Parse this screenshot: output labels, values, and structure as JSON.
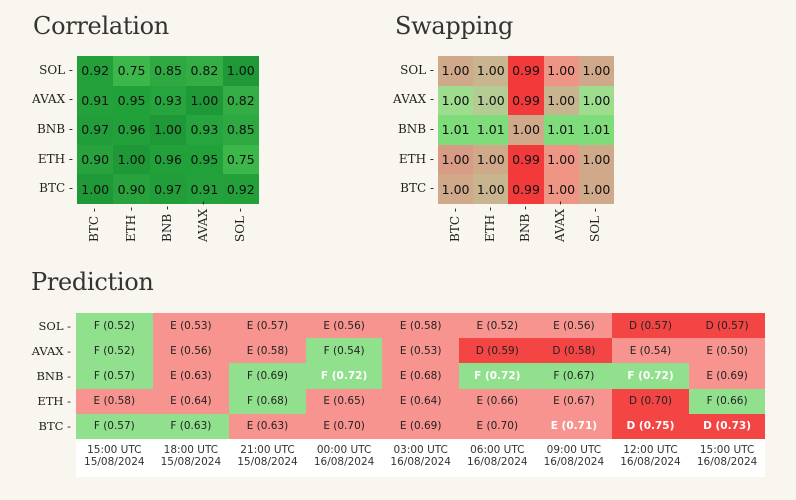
{
  "chart_data": [
    {
      "type": "heatmap",
      "title": "Correlation",
      "rows": [
        "SOL",
        "AVAX",
        "BNB",
        "ETH",
        "BTC"
      ],
      "cols": [
        "BTC",
        "ETH",
        "BNB",
        "AVAX",
        "SOL"
      ],
      "values": [
        [
          0.92,
          0.75,
          0.85,
          0.82,
          1.0
        ],
        [
          0.91,
          0.95,
          0.93,
          1.0,
          0.82
        ],
        [
          0.97,
          0.96,
          1.0,
          0.93,
          0.85
        ],
        [
          0.9,
          1.0,
          0.96,
          0.95,
          0.75
        ],
        [
          1.0,
          0.9,
          0.97,
          0.91,
          0.92
        ]
      ],
      "labels": [
        [
          "0.92",
          "0.75",
          "0.85",
          "0.82",
          "1.00"
        ],
        [
          "0.91",
          "0.95",
          "0.93",
          "1.00",
          "0.82"
        ],
        [
          "0.97",
          "0.96",
          "1.00",
          "0.93",
          "0.85"
        ],
        [
          "0.90",
          "1.00",
          "0.96",
          "0.95",
          "0.75"
        ],
        [
          "1.00",
          "0.90",
          "0.97",
          "0.91",
          "0.92"
        ]
      ],
      "colors": [
        [
          "#23a03a",
          "#3cb84a",
          "#2ea841",
          "#34ad45",
          "#1f9937"
        ],
        [
          "#25a13b",
          "#21a139",
          "#26a43d",
          "#1f9937",
          "#34ad45"
        ],
        [
          "#219e39",
          "#22a03a",
          "#1f9937",
          "#26a43d",
          "#2ea841"
        ],
        [
          "#27a23c",
          "#1f9937",
          "#22a03a",
          "#21a139",
          "#3cb84a"
        ],
        [
          "#1f9937",
          "#27a23c",
          "#219e39",
          "#25a13b",
          "#23a03a"
        ]
      ]
    },
    {
      "type": "heatmap",
      "title": "Swapping",
      "rows": [
        "SOL",
        "AVAX",
        "BNB",
        "ETH",
        "BTC"
      ],
      "cols": [
        "BTC",
        "ETH",
        "BNB",
        "AVAX",
        "SOL"
      ],
      "values": [
        [
          1.0,
          1.0,
          0.99,
          1.0,
          1.0
        ],
        [
          1.0,
          1.0,
          0.99,
          1.0,
          1.0
        ],
        [
          1.01,
          1.01,
          1.0,
          1.01,
          1.01
        ],
        [
          1.0,
          1.0,
          0.99,
          1.0,
          1.0
        ],
        [
          1.0,
          1.0,
          0.99,
          1.0,
          1.0
        ]
      ],
      "labels": [
        [
          "1.00",
          "1.00",
          "0.99",
          "1.00",
          "1.00"
        ],
        [
          "1.00",
          "1.00",
          "0.99",
          "1.00",
          "1.00"
        ],
        [
          "1.01",
          "1.01",
          "1.00",
          "1.01",
          "1.01"
        ],
        [
          "1.00",
          "1.00",
          "0.99",
          "1.00",
          "1.00"
        ],
        [
          "1.00",
          "1.00",
          "0.99",
          "1.00",
          "1.00"
        ]
      ],
      "colors": [
        [
          "#cfa98a",
          "#c8b48e",
          "#f23a3a",
          "#ee9585",
          "#cfa98a"
        ],
        [
          "#9edc8e",
          "#b4cc94",
          "#f23a3a",
          "#c8b48e",
          "#9edc8e"
        ],
        [
          "#7fdc7a",
          "#7fdc7a",
          "#cfa98a",
          "#7fdc7a",
          "#7fdc7a"
        ],
        [
          "#d89b86",
          "#cfa98a",
          "#f23a3a",
          "#ee9585",
          "#cfa98a"
        ],
        [
          "#cfa98a",
          "#c8b48e",
          "#f23a3a",
          "#ee9585",
          "#cfa98a"
        ]
      ]
    },
    {
      "type": "table",
      "title": "Prediction",
      "rows": [
        "SOL",
        "AVAX",
        "BNB",
        "ETH",
        "BTC"
      ],
      "times": [
        [
          "15:00 UTC",
          "15/08/2024"
        ],
        [
          "18:00 UTC",
          "15/08/2024"
        ],
        [
          "21:00 UTC",
          "15/08/2024"
        ],
        [
          "00:00 UTC",
          "16/08/2024"
        ],
        [
          "03:00 UTC",
          "16/08/2024"
        ],
        [
          "06:00 UTC",
          "16/08/2024"
        ],
        [
          "09:00 UTC",
          "16/08/2024"
        ],
        [
          "12:00 UTC",
          "16/08/2024"
        ],
        [
          "15:00 UTC",
          "16/08/2024"
        ]
      ],
      "cells": [
        [
          [
            "F (0.52)",
            "#91e08e",
            0
          ],
          [
            "E (0.53)",
            "#f8948f",
            0
          ],
          [
            "E (0.57)",
            "#f8948f",
            0
          ],
          [
            "E (0.56)",
            "#f8948f",
            0
          ],
          [
            "E (0.58)",
            "#f8948f",
            0
          ],
          [
            "E (0.52)",
            "#f8948f",
            0
          ],
          [
            "E (0.56)",
            "#f8948f",
            0
          ],
          [
            "D (0.57)",
            "#f44545",
            0
          ],
          [
            "D (0.57)",
            "#f44545",
            0
          ]
        ],
        [
          [
            "F (0.52)",
            "#91e08e",
            0
          ],
          [
            "E (0.56)",
            "#f8948f",
            0
          ],
          [
            "E (0.58)",
            "#f8948f",
            0
          ],
          [
            "F (0.54)",
            "#91e08e",
            0
          ],
          [
            "E (0.53)",
            "#f8948f",
            0
          ],
          [
            "D (0.59)",
            "#f44545",
            0
          ],
          [
            "D (0.58)",
            "#f44545",
            0
          ],
          [
            "E (0.54)",
            "#f8948f",
            0
          ],
          [
            "E (0.50)",
            "#f8948f",
            0
          ]
        ],
        [
          [
            "F (0.57)",
            "#91e08e",
            0
          ],
          [
            "E (0.63)",
            "#f8948f",
            0
          ],
          [
            "F (0.69)",
            "#91e08e",
            0
          ],
          [
            "F (0.72)",
            "#91e08e",
            1
          ],
          [
            "E (0.68)",
            "#f8948f",
            0
          ],
          [
            "F (0.72)",
            "#91e08e",
            1
          ],
          [
            "F (0.67)",
            "#91e08e",
            0
          ],
          [
            "F (0.72)",
            "#91e08e",
            1
          ],
          [
            "E (0.69)",
            "#f8948f",
            0
          ]
        ],
        [
          [
            "E (0.58)",
            "#f8948f",
            0
          ],
          [
            "E (0.64)",
            "#f8948f",
            0
          ],
          [
            "F (0.68)",
            "#91e08e",
            0
          ],
          [
            "E (0.65)",
            "#f8948f",
            0
          ],
          [
            "E (0.64)",
            "#f8948f",
            0
          ],
          [
            "E (0.66)",
            "#f8948f",
            0
          ],
          [
            "E (0.67)",
            "#f8948f",
            0
          ],
          [
            "D (0.70)",
            "#f44545",
            0
          ],
          [
            "F (0.66)",
            "#91e08e",
            0
          ]
        ],
        [
          [
            "F (0.57)",
            "#91e08e",
            0
          ],
          [
            "F (0.63)",
            "#91e08e",
            0
          ],
          [
            "E (0.63)",
            "#f8948f",
            0
          ],
          [
            "E (0.70)",
            "#f8948f",
            0
          ],
          [
            "E (0.69)",
            "#f8948f",
            0
          ],
          [
            "E (0.70)",
            "#f8948f",
            0
          ],
          [
            "E (0.71)",
            "#f8948f",
            1
          ],
          [
            "D (0.75)",
            "#f44545",
            1
          ],
          [
            "D (0.73)",
            "#f44545",
            1
          ]
        ]
      ]
    }
  ]
}
